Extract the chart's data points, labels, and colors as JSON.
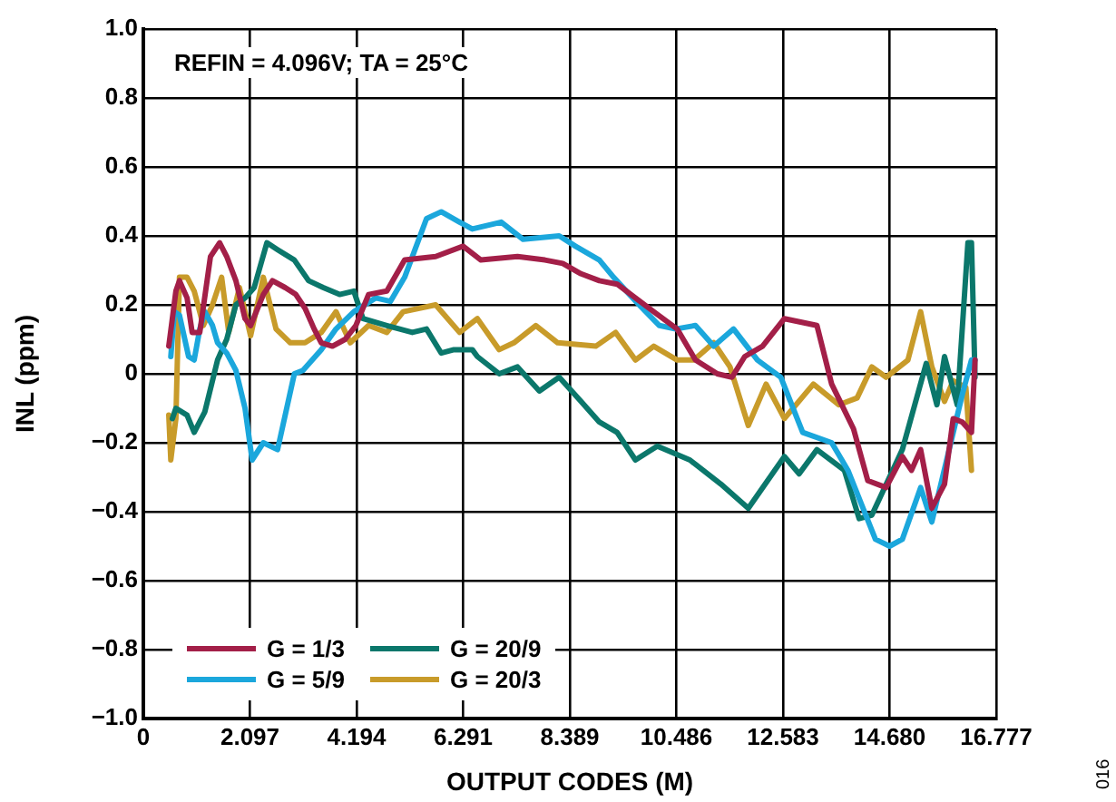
{
  "chart_data": {
    "type": "line",
    "xlabel": "OUTPUT CODES (M)",
    "ylabel": "INL (ppm)",
    "annotations": [
      "REFIN = 4.096V; TA = 25°C",
      "016"
    ],
    "xlim": [
      0,
      16.777
    ],
    "xticks": [
      0,
      2.097,
      4.194,
      6.291,
      8.389,
      10.486,
      12.583,
      {
        "value": 14.68,
        "label": "14.680"
      },
      16.777
    ],
    "ylim": [
      -1,
      1
    ],
    "yticks": [
      {
        "value": -1,
        "label": "−1.0"
      },
      {
        "value": -0.8,
        "label": "−0.8"
      },
      {
        "value": -0.6,
        "label": "−0.6"
      },
      {
        "value": -0.4,
        "label": "−0.4"
      },
      {
        "value": -0.2,
        "label": "−0.2"
      },
      0,
      {
        "value": 0.2,
        "label": "0.2"
      },
      {
        "value": 0.4,
        "label": "0.4"
      },
      {
        "value": 0.6,
        "label": "0.6"
      },
      {
        "value": 0.8,
        "label": "0.8"
      },
      {
        "value": 1,
        "label": "1.0"
      }
    ],
    "grid": true,
    "legend": "bottom left",
    "marker": "none",
    "line_style": "solid",
    "series": [
      {
        "name": "G = 1/3",
        "color": "#a31f48",
        "x": [
          0.5,
          0.64,
          0.71,
          0.86,
          0.96,
          1.11,
          1.32,
          1.5,
          1.64,
          1.82,
          2.0,
          2.11,
          2.36,
          2.54,
          2.79,
          3.0,
          3.18,
          3.36,
          3.5,
          3.72,
          3.97,
          4.18,
          4.43,
          4.79,
          5.14,
          5.75,
          6.29,
          6.64,
          7.36,
          7.9,
          8.25,
          8.61,
          8.97,
          9.32,
          9.68,
          10.04,
          10.5,
          10.86,
          11.29,
          11.58,
          11.83,
          12.18,
          12.61,
          12.93,
          13.25,
          13.54,
          13.97,
          14.25,
          14.61,
          14.93,
          15.11,
          15.29,
          15.51,
          15.76,
          15.93,
          16.11,
          16.29,
          16.36
        ],
        "values": [
          0.08,
          0.24,
          0.27,
          0.22,
          0.12,
          0.12,
          0.34,
          0.38,
          0.34,
          0.27,
          0.16,
          0.14,
          0.23,
          0.27,
          0.25,
          0.23,
          0.19,
          0.13,
          0.09,
          0.08,
          0.1,
          0.14,
          0.23,
          0.24,
          0.33,
          0.34,
          0.37,
          0.33,
          0.34,
          0.33,
          0.32,
          0.29,
          0.27,
          0.26,
          0.22,
          0.18,
          0.13,
          0.04,
          0.0,
          -0.01,
          0.05,
          0.08,
          0.16,
          0.15,
          0.14,
          -0.03,
          -0.16,
          -0.31,
          -0.33,
          -0.24,
          -0.28,
          -0.22,
          -0.39,
          -0.32,
          -0.13,
          -0.14,
          -0.17,
          0.04
        ]
      },
      {
        "name": "G = 5/9",
        "color": "#1ba7dc",
        "x": [
          0.54,
          0.61,
          0.71,
          0.89,
          1.0,
          1.11,
          1.21,
          1.36,
          1.46,
          1.64,
          1.82,
          2.0,
          2.14,
          2.36,
          2.64,
          2.97,
          3.14,
          3.5,
          3.79,
          4.14,
          4.57,
          4.86,
          5.14,
          5.57,
          5.86,
          6.22,
          6.47,
          7.04,
          7.47,
          8.18,
          8.5,
          8.97,
          9.25,
          9.75,
          10.15,
          10.47,
          10.86,
          11.22,
          11.61,
          12.08,
          12.54,
          12.97,
          13.54,
          13.86,
          14.4,
          14.68,
          14.93,
          15.29,
          15.51,
          16.11,
          16.29,
          16.36
        ],
        "values": [
          0.05,
          0.18,
          0.17,
          0.05,
          0.04,
          0.13,
          0.18,
          0.14,
          0.09,
          0.06,
          0.01,
          -0.1,
          -0.25,
          -0.2,
          -0.22,
          0.0,
          0.01,
          0.07,
          0.13,
          0.18,
          0.22,
          0.21,
          0.28,
          0.45,
          0.47,
          0.44,
          0.42,
          0.44,
          0.39,
          0.4,
          0.37,
          0.33,
          0.28,
          0.2,
          0.14,
          0.13,
          0.14,
          0.08,
          0.13,
          0.04,
          -0.01,
          -0.17,
          -0.2,
          -0.28,
          -0.48,
          -0.5,
          -0.48,
          -0.33,
          -0.43,
          -0.06,
          0.04,
          0.04
        ]
      },
      {
        "name": "G = 20/9",
        "color": "#0b776b",
        "x": [
          0.57,
          0.64,
          0.86,
          1.0,
          1.21,
          1.46,
          1.64,
          1.82,
          2.0,
          2.18,
          2.43,
          2.64,
          2.97,
          3.25,
          3.54,
          3.86,
          4.14,
          4.32,
          4.79,
          5.29,
          5.57,
          5.86,
          6.11,
          6.47,
          6.57,
          7.0,
          7.36,
          7.79,
          8.18,
          8.61,
          8.97,
          9.32,
          9.68,
          10.11,
          10.75,
          11.36,
          11.9,
          12.61,
          12.9,
          13.25,
          13.79,
          14.08,
          14.33,
          14.93,
          15.4,
          15.61,
          15.76,
          16.01,
          16.22,
          16.29,
          16.36
        ],
        "values": [
          -0.13,
          -0.1,
          -0.12,
          -0.17,
          -0.11,
          0.04,
          0.1,
          0.2,
          0.22,
          0.25,
          0.38,
          0.36,
          0.33,
          0.27,
          0.25,
          0.23,
          0.24,
          0.16,
          0.14,
          0.12,
          0.13,
          0.06,
          0.07,
          0.07,
          0.05,
          0.0,
          0.02,
          -0.05,
          -0.01,
          -0.08,
          -0.14,
          -0.17,
          -0.25,
          -0.21,
          -0.25,
          -0.32,
          -0.39,
          -0.24,
          -0.29,
          -0.22,
          -0.28,
          -0.42,
          -0.41,
          -0.22,
          0.03,
          -0.09,
          0.05,
          -0.09,
          0.38,
          0.38,
          -0.01
        ]
      },
      {
        "name": "G = 20/3",
        "color": "#c89b2a",
        "x": [
          0.5,
          0.54,
          0.64,
          0.71,
          0.86,
          1.0,
          1.18,
          1.36,
          1.54,
          1.68,
          1.89,
          2.11,
          2.36,
          2.61,
          2.89,
          3.18,
          3.5,
          3.79,
          4.07,
          4.43,
          4.79,
          5.11,
          5.75,
          6.22,
          6.57,
          7.0,
          7.29,
          7.72,
          8.15,
          8.9,
          9.29,
          9.68,
          10.04,
          10.5,
          10.83,
          11.22,
          11.54,
          11.9,
          12.25,
          12.61,
          13.18,
          13.68,
          14.04,
          14.33,
          14.61,
          15.04,
          15.29,
          15.51,
          15.76,
          15.93,
          16.18,
          16.29
        ],
        "values": [
          -0.12,
          -0.25,
          -0.13,
          0.28,
          0.28,
          0.24,
          0.14,
          0.2,
          0.28,
          0.12,
          0.25,
          0.11,
          0.28,
          0.13,
          0.09,
          0.09,
          0.12,
          0.18,
          0.09,
          0.14,
          0.12,
          0.18,
          0.2,
          0.12,
          0.16,
          0.07,
          0.09,
          0.14,
          0.09,
          0.08,
          0.12,
          0.04,
          0.08,
          0.04,
          0.04,
          0.09,
          0.02,
          -0.15,
          -0.03,
          -0.13,
          -0.03,
          -0.09,
          -0.07,
          0.02,
          -0.01,
          0.04,
          0.18,
          0.02,
          -0.08,
          -0.02,
          -0.04,
          -0.28
        ]
      }
    ]
  }
}
